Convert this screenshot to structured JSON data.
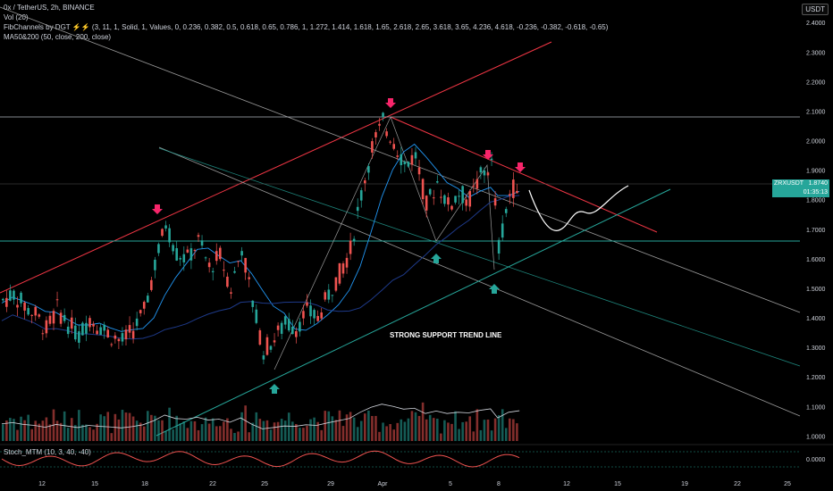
{
  "header": {
    "symbol_line": "0x / TetherUS, 2h, BINANCE",
    "vol_line": "Vol (20)",
    "fib_line": "FibChannels by DGT ⚡⚡ (3, 11, 1, Solid, 1, Values, 0, 0.236, 0.382, 0.5, 0.618, 0.65, 0.786, 1, 1.272, 1.414, 1.618, 1.65, 2.618, 2.65, 3.618, 3.65, 4.236, 4.618, -0.236, -0.382, -0.618, -0.65)",
    "ma_line": "MA50&200 (50, close, 200, close)",
    "osc_line": "Stoch_MTM (10, 3, 40, -40)",
    "currency": "USDT"
  },
  "price_label": {
    "symbol": "ZRXUSDT",
    "price": "1.8740",
    "countdown": "01:35:13",
    "color": "#26a69a"
  },
  "annotation": "STRONG SUPPORT TREND LINE",
  "colors": {
    "up": "#26a69a",
    "down": "#ef5350",
    "resistance": "#f23645",
    "support": "#26a69a",
    "ma50": "#2196f3",
    "ma200": "#1e3a8a",
    "arrow_down": "#f7256a",
    "arrow_up": "#26a69a"
  },
  "chart_data": {
    "type": "candlestick",
    "y_ticks": [
      "2.4000",
      "2.3000",
      "2.2000",
      "2.1000",
      "2.0000",
      "1.9000",
      "1.8000",
      "1.7000",
      "1.6000",
      "1.5000",
      "1.4000",
      "1.3000",
      "1.2000",
      "1.1000",
      "1.0000"
    ],
    "ylim": [
      0.98,
      2.44
    ],
    "x_ticks": [
      "12",
      "15",
      "18",
      "22",
      "25",
      "29",
      "Apr",
      "5",
      "8",
      "12",
      "15",
      "19",
      "22",
      "25"
    ],
    "osc_tick": "0.0000",
    "price_path": [
      [
        0,
        1.45
      ],
      [
        3,
        1.49
      ],
      [
        6,
        1.43
      ],
      [
        9,
        1.4
      ],
      [
        12,
        1.34
      ],
      [
        15,
        1.43
      ],
      [
        18,
        1.38
      ],
      [
        21,
        1.33
      ],
      [
        24,
        1.4
      ],
      [
        27,
        1.37
      ],
      [
        30,
        1.35
      ],
      [
        33,
        1.32
      ],
      [
        36,
        1.36
      ],
      [
        39,
        1.42
      ],
      [
        42,
        1.55
      ],
      [
        45,
        1.73
      ],
      [
        48,
        1.62
      ],
      [
        51,
        1.6
      ],
      [
        54,
        1.66
      ],
      [
        57,
        1.57
      ],
      [
        60,
        1.6
      ],
      [
        63,
        1.5
      ],
      [
        66,
        1.64
      ],
      [
        69,
        1.44
      ],
      [
        72,
        1.29
      ],
      [
        75,
        1.33
      ],
      [
        78,
        1.38
      ],
      [
        81,
        1.37
      ],
      [
        84,
        1.42
      ],
      [
        87,
        1.4
      ],
      [
        90,
        1.48
      ],
      [
        93,
        1.55
      ],
      [
        96,
        1.62
      ],
      [
        99,
        1.82
      ],
      [
        102,
        1.98
      ],
      [
        105,
        2.08
      ],
      [
        108,
        2.01
      ],
      [
        111,
        1.92
      ],
      [
        114,
        1.95
      ],
      [
        117,
        1.78
      ],
      [
        120,
        1.86
      ],
      [
        123,
        1.78
      ],
      [
        126,
        1.82
      ],
      [
        129,
        1.8
      ],
      [
        132,
        1.88
      ],
      [
        135,
        1.93
      ],
      [
        137,
        1.64
      ],
      [
        140,
        1.82
      ],
      [
        143,
        1.87
      ]
    ],
    "candles": [
      [
        0,
        1.43,
        1.46,
        1.49,
        1.41
      ],
      [
        3,
        1.46,
        1.48,
        1.5,
        1.44
      ],
      [
        6,
        1.48,
        1.44,
        1.49,
        1.42
      ],
      [
        9,
        1.44,
        1.41,
        1.45,
        1.38
      ],
      [
        12,
        1.41,
        1.36,
        1.42,
        1.33
      ],
      [
        15,
        1.36,
        1.43,
        1.45,
        1.35
      ],
      [
        18,
        1.43,
        1.38,
        1.44,
        1.36
      ],
      [
        21,
        1.38,
        1.34,
        1.39,
        1.31
      ],
      [
        24,
        1.34,
        1.4,
        1.42,
        1.33
      ],
      [
        27,
        1.4,
        1.37,
        1.41,
        1.34
      ],
      [
        30,
        1.37,
        1.34,
        1.38,
        1.31
      ],
      [
        33,
        1.34,
        1.32,
        1.36,
        1.29
      ],
      [
        36,
        1.32,
        1.36,
        1.38,
        1.3
      ],
      [
        39,
        1.36,
        1.42,
        1.45,
        1.35
      ],
      [
        42,
        1.42,
        1.58,
        1.62,
        1.4
      ],
      [
        45,
        1.58,
        1.72,
        1.76,
        1.56
      ],
      [
        48,
        1.72,
        1.62,
        1.74,
        1.59
      ],
      [
        51,
        1.62,
        1.6,
        1.66,
        1.56
      ],
      [
        54,
        1.6,
        1.66,
        1.69,
        1.57
      ],
      [
        57,
        1.66,
        1.57,
        1.67,
        1.54
      ],
      [
        60,
        1.57,
        1.61,
        1.64,
        1.55
      ],
      [
        63,
        1.61,
        1.5,
        1.62,
        1.47
      ],
      [
        66,
        1.5,
        1.64,
        1.67,
        1.49
      ],
      [
        69,
        1.64,
        1.45,
        1.65,
        1.41
      ],
      [
        72,
        1.45,
        1.29,
        1.46,
        1.26
      ],
      [
        75,
        1.29,
        1.33,
        1.35,
        1.27
      ],
      [
        78,
        1.33,
        1.38,
        1.4,
        1.31
      ],
      [
        81,
        1.38,
        1.37,
        1.4,
        1.35
      ],
      [
        84,
        1.37,
        1.42,
        1.44,
        1.36
      ],
      [
        87,
        1.42,
        1.4,
        1.44,
        1.38
      ],
      [
        90,
        1.4,
        1.48,
        1.5,
        1.39
      ],
      [
        93,
        1.48,
        1.55,
        1.58,
        1.46
      ],
      [
        96,
        1.55,
        1.63,
        1.66,
        1.53
      ],
      [
        99,
        1.63,
        1.82,
        1.85,
        1.62
      ],
      [
        102,
        1.82,
        1.98,
        2.02,
        1.8
      ],
      [
        105,
        1.98,
        2.06,
        2.1,
        1.95
      ],
      [
        108,
        2.06,
        2.0,
        2.07,
        1.96
      ],
      [
        111,
        2.0,
        1.92,
        2.01,
        1.88
      ],
      [
        114,
        1.92,
        1.95,
        1.98,
        1.89
      ],
      [
        117,
        1.95,
        1.78,
        1.96,
        1.7
      ],
      [
        120,
        1.78,
        1.86,
        1.89,
        1.76
      ],
      [
        123,
        1.86,
        1.78,
        1.87,
        1.74
      ],
      [
        126,
        1.78,
        1.82,
        1.85,
        1.75
      ],
      [
        129,
        1.82,
        1.8,
        1.84,
        1.77
      ],
      [
        132,
        1.8,
        1.88,
        1.91,
        1.78
      ],
      [
        135,
        1.88,
        1.92,
        1.95,
        1.85
      ],
      [
        137,
        1.92,
        1.64,
        1.93,
        1.6
      ],
      [
        140,
        1.64,
        1.82,
        1.85,
        1.62
      ],
      [
        143,
        1.82,
        1.874,
        1.88,
        1.79
      ]
    ]
  }
}
